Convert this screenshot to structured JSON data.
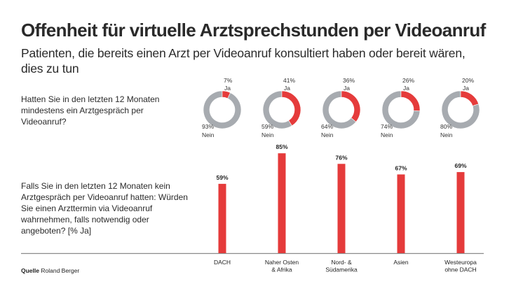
{
  "header": {
    "title": "Offenheit für virtuelle Arztsprechstunden per Videoanruf",
    "subtitle": "Patienten, die bereits einen Arzt per Videoanruf konsultiert haben oder bereit wären, dies zu tun"
  },
  "questions": {
    "q1": "Hatten Sie in den letzten 12 Monaten mindestens ein Arztgespräch per Videoanruf?",
    "q2": "Falls Sie in den letzten 12 Monaten kein Arztgespräch per Videoanruf hatten: Würden Sie einen Arzttermin via Videoanruf wahrnehmen, falls notwendig oder angeboten? [% Ja]"
  },
  "source": {
    "label": "Quelle",
    "text": "Roland Berger"
  },
  "colors": {
    "ja": "#e53b3b",
    "nein": "#a7abb0",
    "baseline": "#8a8a8a"
  },
  "chart_data": [
    {
      "type": "pie",
      "variant": "donut",
      "title": "Hatten Sie in den letzten 12 Monaten mindestens ein Arztgespräch per Videoanruf?",
      "categories": [
        "DACH",
        "Naher Osten & Afrika",
        "Nord- & Südamerika",
        "Asien",
        "Westeuropa ohne DACH"
      ],
      "series": [
        {
          "name": "Ja",
          "values": [
            7,
            41,
            36,
            26,
            20
          ]
        },
        {
          "name": "Nein",
          "values": [
            93,
            59,
            64,
            74,
            80
          ]
        }
      ],
      "labels": {
        "ja": [
          "7%",
          "41%",
          "36%",
          "26%",
          "20%"
        ],
        "nein": [
          "93%",
          "59%",
          "64%",
          "74%",
          "80%"
        ],
        "ja_word": "Ja",
        "nein_word": "Nein"
      }
    },
    {
      "type": "bar",
      "title": "Falls Sie in den letzten 12 Monaten kein Arztgespräch per Videoanruf hatten: Würden Sie einen Arzttermin via Videoanruf wahrnehmen, falls notwendig oder angeboten? [% Ja]",
      "categories": [
        [
          "DACH"
        ],
        [
          "Naher Osten",
          "& Afrika"
        ],
        [
          "Nord- &",
          "Südamerika"
        ],
        [
          "Asien"
        ],
        [
          "Westeuropa",
          "ohne DACH"
        ]
      ],
      "values": [
        59,
        85,
        76,
        67,
        69
      ],
      "value_labels": [
        "59%",
        "85%",
        "76%",
        "67%",
        "69%"
      ],
      "xlabel": "",
      "ylabel": "% Ja",
      "ylim": [
        0,
        100
      ],
      "grid": false
    }
  ]
}
